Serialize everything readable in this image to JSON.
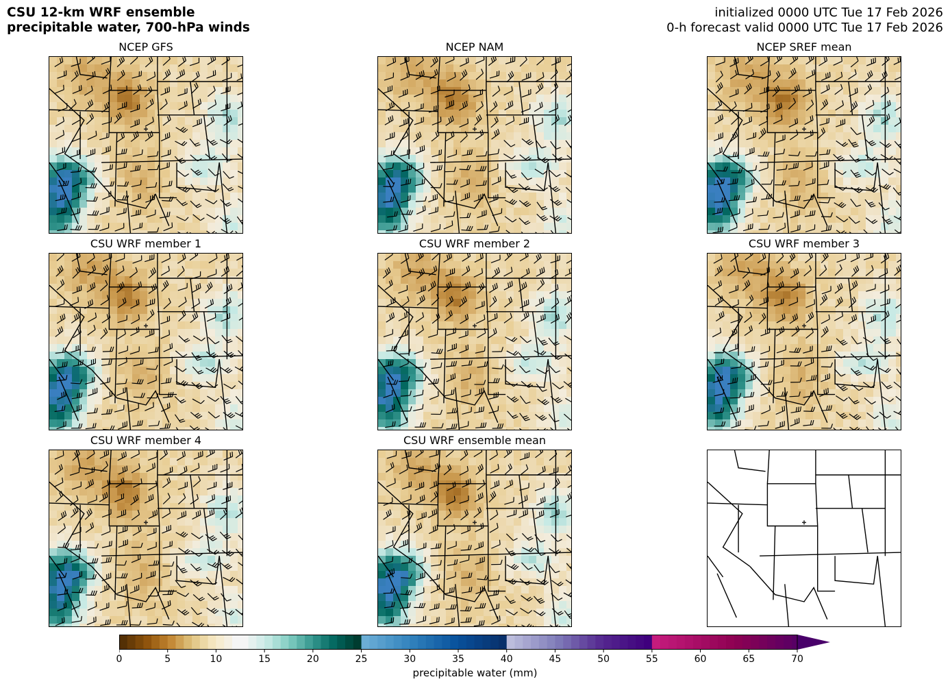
{
  "header": {
    "title_line1": "CSU 12-km WRF ensemble",
    "title_line2": "precipitable water, 700-hPa winds",
    "init_line": "initialized 0000 UTC Tue 17 Feb 2026",
    "valid_line": "0-h forecast valid 0000 UTC Tue 17 Feb 2026"
  },
  "panels": [
    {
      "title": "NCEP GFS"
    },
    {
      "title": "NCEP NAM"
    },
    {
      "title": "NCEP SREF mean"
    },
    {
      "title": "CSU WRF member 1"
    },
    {
      "title": "CSU WRF member 2"
    },
    {
      "title": "CSU WRF member 3"
    },
    {
      "title": "CSU WRF member 4"
    },
    {
      "title": "CSU WRF ensemble mean"
    },
    {
      "title": ""
    }
  ],
  "colorbar": {
    "label": "precipitable water (mm)",
    "ticks": [
      "0",
      "5",
      "10",
      "15",
      "20",
      "25",
      "30",
      "35",
      "40",
      "45",
      "50",
      "55",
      "60",
      "65",
      "70"
    ],
    "range": [
      0,
      70
    ],
    "extend": "max",
    "segments": [
      {
        "from": 0,
        "to": 12.5,
        "colors": [
          "#543005",
          "#8c510a",
          "#bf812d",
          "#dfc27d",
          "#f6e8c3",
          "#f5f5f5"
        ]
      },
      {
        "from": 12.5,
        "to": 25,
        "colors": [
          "#f5f5f5",
          "#c7eae5",
          "#80cdc1",
          "#35978f",
          "#01665e",
          "#003c30"
        ]
      },
      {
        "from": 25,
        "to": 40,
        "colors": [
          "#6baed6",
          "#3182bd",
          "#08519c",
          "#08306b"
        ]
      },
      {
        "from": 40,
        "to": 55,
        "colors": [
          "#bcbddc",
          "#807dba",
          "#54278f",
          "#3f007d"
        ]
      },
      {
        "from": 55,
        "to": 72,
        "colors": [
          "#c51b7d",
          "#8e0152",
          "#49006a"
        ]
      }
    ]
  },
  "map_colors": {
    "dry_dark": "#8c510a",
    "dry_mid": "#c8964a",
    "dry_light": "#e9cf97",
    "neutral": "#f3ecdc",
    "moist_light": "#c7eae5",
    "moist_mid": "#35978f",
    "moist_dark": "#01665e",
    "wet_blue": "#3a7fc0"
  }
}
